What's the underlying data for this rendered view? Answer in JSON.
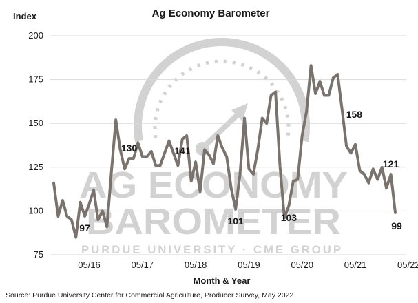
{
  "colors": {
    "line": "#7a736d",
    "grid": "#d9d9d9",
    "watermark": "#d2d2d2",
    "text": "#1a1a1a"
  },
  "watermark": {
    "line1": "AG ECONOMY",
    "line2": "BAROMETER",
    "line3": "PURDUE UNIVERSITY · CME GROUP",
    "icon": "gauge-arrow-icon"
  },
  "source": "Source: Purdue University Center for Commercial Agriculture, Producer Survey, May 2022",
  "chart_data": {
    "type": "line",
    "title": "Ag Economy Barometer",
    "ylabel": "Index",
    "xlabel": "Month & Year",
    "ylim": [
      75,
      200
    ],
    "yticks": [
      75,
      100,
      125,
      150,
      175,
      200
    ],
    "grid": true,
    "legend": "none",
    "x_tick_labels": [
      {
        "label": "05/16",
        "index": 8
      },
      {
        "label": "05/17",
        "index": 20
      },
      {
        "label": "05/18",
        "index": 32
      },
      {
        "label": "05/19",
        "index": 44
      },
      {
        "label": "05/20",
        "index": 56
      },
      {
        "label": "05/21",
        "index": 68
      },
      {
        "label": "05/22",
        "index": 80
      }
    ],
    "series": [
      {
        "values": [
          116,
          97,
          106,
          97,
          95,
          85,
          105,
          97,
          104,
          112,
          95,
          100,
          91,
          122,
          152,
          135,
          124,
          130,
          130,
          139,
          131,
          131,
          134,
          126,
          126,
          133,
          140,
          133,
          126,
          141,
          143,
          117,
          128,
          111,
          135,
          132,
          127,
          143,
          136,
          131,
          113,
          101,
          121,
          153,
          124,
          121,
          135,
          153,
          150,
          166,
          168,
          126,
          96,
          103,
          117,
          118,
          143,
          157,
          183,
          167,
          174,
          166,
          166,
          176,
          178,
          158,
          137,
          133,
          138,
          123,
          121,
          116,
          124,
          118,
          125,
          113,
          121,
          99
        ]
      }
    ],
    "data_labels": [
      {
        "text": "97",
        "index": 7
      },
      {
        "text": "130",
        "index": 17
      },
      {
        "text": "141",
        "index": 29
      },
      {
        "text": "101",
        "index": 41
      },
      {
        "text": "103",
        "index": 53
      },
      {
        "text": "158",
        "index": 65
      },
      {
        "text": "121",
        "index": 76
      },
      {
        "text": "99",
        "index": 77
      }
    ]
  }
}
